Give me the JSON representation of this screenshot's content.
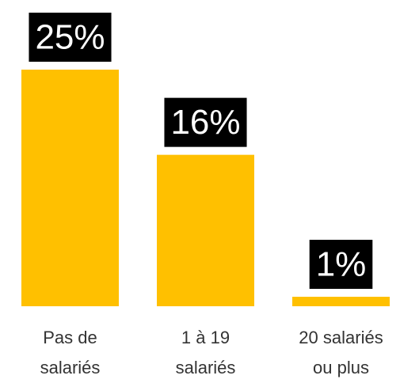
{
  "chart_data": {
    "type": "bar",
    "categories": [
      "Pas de salariés",
      "1 à 19 salariés",
      "20 salariés ou plus"
    ],
    "values": [
      25,
      16,
      1
    ],
    "value_labels": [
      "25%",
      "16%",
      "1%"
    ],
    "color": "#ffc000"
  }
}
